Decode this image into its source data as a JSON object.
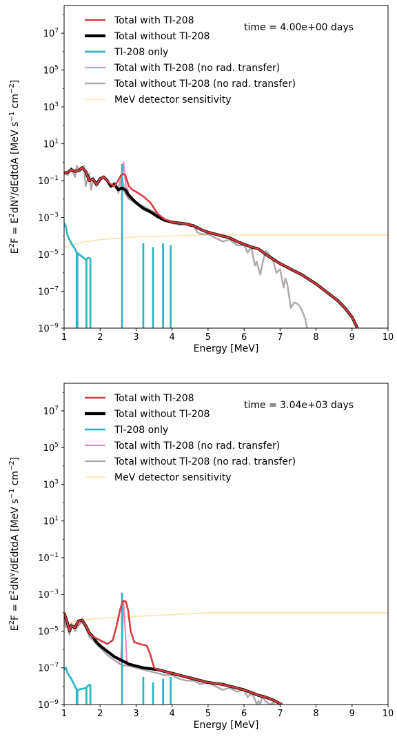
{
  "figure": {
    "background": "#ffffff"
  },
  "chart_data": [
    {
      "type": "line",
      "annotation": "time = 4.00e+00 days",
      "xlabel": "Energy [MeV]",
      "ylabel_parts": [
        "E",
        "2",
        "F = E",
        "2",
        "dN",
        "γ",
        "/dEdtdA [MeV s",
        "−1",
        " cm",
        "−2",
        "]"
      ],
      "xlim": [
        1,
        10
      ],
      "ylim_log10": [
        -9,
        8.5
      ],
      "yscale": "log",
      "xticks": [
        1,
        2,
        3,
        4,
        5,
        6,
        7,
        8,
        9,
        10
      ],
      "xtick_labels": [
        "1",
        "2",
        "3",
        "4",
        "5",
        "6",
        "7",
        "8",
        "9",
        "10"
      ],
      "yticks_log10": [
        -9,
        -7,
        -5,
        -3,
        -1,
        1,
        3,
        5,
        7
      ],
      "ytick_labels": [
        [
          "10",
          "−9"
        ],
        [
          "10",
          "−7"
        ],
        [
          "10",
          "−5"
        ],
        [
          "10",
          "−3"
        ],
        [
          "10",
          "−1"
        ],
        [
          "10",
          "1"
        ],
        [
          "10",
          "3"
        ],
        [
          "10",
          "5"
        ],
        [
          "10",
          "7"
        ]
      ],
      "legend_position": "top-left",
      "series": [
        {
          "name": "MeV detector sensitivity",
          "color": "#fde3a7",
          "width": 1.6,
          "x": [
            1.0,
            1.5,
            2.0,
            3.0,
            4.0,
            5.0,
            6.0,
            7.0,
            8.0,
            9.0,
            10.0
          ],
          "y_log10": [
            -4.6,
            -4.35,
            -4.2,
            -4.05,
            -4.0,
            -3.95,
            -3.95,
            -3.95,
            -3.95,
            -3.95,
            -3.95
          ]
        },
        {
          "name": "Total without Tl-208 (no rad. transfer)",
          "color": "#b0a9ab",
          "width": 2.5,
          "x": [
            1.0,
            1.1,
            1.2,
            1.3,
            1.35,
            1.45,
            1.55,
            1.6,
            1.7,
            1.75,
            1.8,
            1.9,
            2.0,
            2.1,
            2.2,
            2.3,
            2.4,
            2.5,
            2.6,
            2.7,
            2.8,
            3.0,
            3.2,
            3.5,
            3.8,
            4.0,
            4.2,
            4.4,
            4.5,
            4.6,
            4.7,
            4.8,
            5.0,
            5.2,
            5.4,
            5.6,
            5.8,
            6.0,
            6.1,
            6.2,
            6.3,
            6.35,
            6.45,
            6.5,
            6.6,
            6.7,
            6.8,
            6.9,
            7.0,
            7.1,
            7.15,
            7.2,
            7.3,
            7.4,
            7.5,
            7.6,
            7.7,
            7.75
          ],
          "y_log10": [
            -0.5,
            -0.7,
            -0.3,
            -0.8,
            -0.2,
            -0.5,
            -0.2,
            -1.3,
            -0.6,
            -1.5,
            -1.0,
            -1.3,
            -1.0,
            -0.8,
            -1.0,
            -1.3,
            -1.1,
            -1.4,
            -0.8,
            -1.7,
            -2.0,
            -2.2,
            -2.4,
            -2.7,
            -3.1,
            -3.3,
            -3.4,
            -3.3,
            -3.5,
            -3.4,
            -3.8,
            -3.9,
            -3.9,
            -4.1,
            -4.3,
            -4.2,
            -4.5,
            -4.5,
            -4.9,
            -4.6,
            -5.6,
            -5.4,
            -6.1,
            -5.6,
            -4.8,
            -5.0,
            -5.3,
            -6.0,
            -5.8,
            -6.8,
            -6.3,
            -6.6,
            -7.9,
            -7.6,
            -7.7,
            -8.0,
            -8.5,
            -9.0
          ]
        },
        {
          "name": "Total with Tl-208 (no rad. transfer)",
          "color": "#f384c6",
          "width": 2.2,
          "x": [
            2.5,
            2.58,
            2.62,
            2.65,
            2.68,
            2.72,
            2.8
          ],
          "y_log10": [
            -1.7,
            -1.3,
            -0.6,
            0.0,
            -0.6,
            -1.3,
            -1.6
          ]
        },
        {
          "name": "Tl-208 only",
          "color": "#2eb6c6",
          "width": 2.8,
          "stems": true,
          "x": [
            1.0,
            1.05,
            1.1,
            1.2,
            1.3,
            1.35,
            1.62,
            1.65,
            1.73
          ],
          "y_log10": [
            -3.3,
            -3.5,
            -4.0,
            -4.4,
            -4.7,
            -4.9,
            -5.3,
            -5.2,
            -5.2
          ],
          "lines": [
            [
              1.37,
              -4.9
            ],
            [
              2.61,
              -0.1
            ],
            [
              3.2,
              -4.4
            ],
            [
              3.47,
              -4.6
            ],
            [
              3.75,
              -4.4
            ],
            [
              3.96,
              -4.5
            ]
          ]
        },
        {
          "name": "Total without Tl-208",
          "color": "#000000",
          "width": 4.2,
          "x": [
            1.0,
            1.1,
            1.2,
            1.3,
            1.4,
            1.5,
            1.6,
            1.7,
            1.8,
            1.9,
            2.0,
            2.1,
            2.2,
            2.3,
            2.4,
            2.5,
            2.6,
            2.7,
            2.8,
            3.0,
            3.2,
            3.4,
            3.6,
            3.8,
            4.0,
            4.2,
            4.4,
            4.6,
            4.8,
            5.0,
            5.2,
            5.4,
            5.6,
            5.8,
            6.0,
            6.2,
            6.4,
            6.6,
            6.8,
            7.0,
            7.2,
            7.4,
            7.6,
            7.8,
            8.0,
            8.2,
            8.4,
            8.6,
            8.8,
            9.0,
            9.1,
            9.15
          ],
          "y_log10": [
            -0.6,
            -0.55,
            -0.4,
            -0.5,
            -0.45,
            -0.3,
            -0.5,
            -1.0,
            -0.9,
            -1.2,
            -0.9,
            -0.8,
            -1.0,
            -1.3,
            -1.2,
            -1.5,
            -1.4,
            -1.5,
            -1.8,
            -2.2,
            -2.5,
            -2.7,
            -2.95,
            -3.15,
            -3.25,
            -3.3,
            -3.35,
            -3.45,
            -3.65,
            -3.8,
            -3.9,
            -4.0,
            -4.1,
            -4.3,
            -4.45,
            -4.6,
            -4.7,
            -5.0,
            -5.25,
            -5.5,
            -5.7,
            -5.9,
            -6.1,
            -6.35,
            -6.6,
            -6.9,
            -7.2,
            -7.5,
            -7.9,
            -8.4,
            -8.8,
            -9.0
          ]
        },
        {
          "name": "Total with Tl-208",
          "color": "#d63a3d",
          "width": 2.6,
          "x": [
            1.0,
            1.1,
            1.2,
            1.3,
            1.4,
            1.5,
            1.6,
            1.7,
            1.8,
            1.9,
            2.0,
            2.1,
            2.2,
            2.3,
            2.4,
            2.5,
            2.6,
            2.65,
            2.7,
            2.8,
            2.9,
            3.0,
            3.2,
            3.4,
            3.6,
            3.8,
            4.0,
            4.2,
            4.4,
            4.6,
            4.8,
            5.0,
            5.2,
            5.4,
            5.6,
            5.8,
            6.0,
            6.2,
            6.4,
            6.6,
            6.8,
            7.0,
            7.2,
            7.4,
            7.6,
            7.8,
            8.0,
            8.2,
            8.4,
            8.6,
            8.8,
            9.0,
            9.1,
            9.15
          ],
          "y_log10": [
            -0.6,
            -0.55,
            -0.4,
            -0.5,
            -0.45,
            -0.3,
            -0.5,
            -1.0,
            -0.9,
            -1.2,
            -0.9,
            -0.8,
            -1.0,
            -1.2,
            -1.3,
            -1.0,
            -0.65,
            -0.65,
            -0.7,
            -1.3,
            -1.5,
            -1.6,
            -1.85,
            -2.2,
            -2.8,
            -3.1,
            -3.25,
            -3.3,
            -3.35,
            -3.45,
            -3.65,
            -3.8,
            -3.9,
            -4.0,
            -4.1,
            -4.3,
            -4.45,
            -4.6,
            -4.7,
            -5.0,
            -5.25,
            -5.5,
            -5.7,
            -5.9,
            -6.1,
            -6.35,
            -6.6,
            -6.9,
            -7.2,
            -7.5,
            -7.9,
            -8.4,
            -8.8,
            -9.0
          ]
        }
      ]
    },
    {
      "type": "line",
      "annotation": "time = 3.04e+03 days",
      "xlabel": "Energy [MeV]",
      "ylabel_parts": [
        "E",
        "2",
        "F = E",
        "2",
        "dN",
        "γ",
        "/dEdtdA [MeV s",
        "−1",
        " cm",
        "−2",
        "]"
      ],
      "xlim": [
        1,
        10
      ],
      "ylim_log10": [
        -9,
        8.5
      ],
      "yscale": "log",
      "xticks": [
        1,
        2,
        3,
        4,
        5,
        6,
        7,
        8,
        9,
        10
      ],
      "xtick_labels": [
        "1",
        "2",
        "3",
        "4",
        "5",
        "6",
        "7",
        "8",
        "9",
        "10"
      ],
      "yticks_log10": [
        -9,
        -7,
        -5,
        -3,
        -1,
        1,
        3,
        5,
        7
      ],
      "ytick_labels": [
        [
          "10",
          "−9"
        ],
        [
          "10",
          "−7"
        ],
        [
          "10",
          "−5"
        ],
        [
          "10",
          "−3"
        ],
        [
          "10",
          "−1"
        ],
        [
          "10",
          "1"
        ],
        [
          "10",
          "3"
        ],
        [
          "10",
          "5"
        ],
        [
          "10",
          "7"
        ]
      ],
      "legend_position": "top-left",
      "series": [
        {
          "name": "MeV detector sensitivity",
          "color": "#fde3a7",
          "width": 1.6,
          "x": [
            1.0,
            1.5,
            2.0,
            3.0,
            4.0,
            5.0,
            6.0,
            7.0,
            8.0,
            9.0,
            10.0
          ],
          "y_log10": [
            -4.6,
            -4.4,
            -4.3,
            -4.2,
            -4.1,
            -4.0,
            -4.0,
            -4.0,
            -4.0,
            -4.0,
            -4.0
          ]
        },
        {
          "name": "Total without Tl-208 (no rad. transfer)",
          "color": "#b0a9ab",
          "width": 2.5,
          "x": [
            1.0,
            1.05,
            1.1,
            1.15,
            1.2,
            1.3,
            1.4,
            1.5,
            1.6,
            1.7,
            1.8,
            2.0,
            2.2,
            2.4,
            2.6,
            2.8,
            3.0,
            3.2,
            3.4,
            3.6,
            3.8,
            4.0,
            4.2,
            4.4,
            4.6,
            4.8,
            5.0,
            5.2,
            5.4,
            5.6,
            5.8,
            6.0,
            6.1,
            6.2,
            6.3,
            6.35,
            6.4,
            6.45,
            6.5,
            6.6,
            6.7,
            6.8,
            6.85
          ],
          "y_log10": [
            -4.3,
            -4.8,
            -4.5,
            -5.2,
            -4.6,
            -5.0,
            -4.7,
            -4.5,
            -4.8,
            -5.3,
            -5.5,
            -5.9,
            -6.3,
            -6.6,
            -6.85,
            -6.9,
            -7.0,
            -7.1,
            -7.2,
            -7.3,
            -7.4,
            -7.4,
            -7.6,
            -7.7,
            -7.7,
            -7.9,
            -7.8,
            -8.0,
            -8.2,
            -8.1,
            -8.3,
            -8.2,
            -8.6,
            -8.4,
            -8.7,
            -9.0,
            -8.8,
            -9.0,
            -8.6,
            -8.8,
            -9.0,
            -8.9,
            -9.0
          ]
        },
        {
          "name": "Total with Tl-208 (no rad. transfer)",
          "color": "#f384c6",
          "width": 2.2,
          "x": [
            2.5,
            2.58,
            2.62,
            2.65,
            2.7,
            2.74,
            2.8
          ],
          "y_log10": [
            -6.8,
            -6.5,
            -5.0,
            -3.4,
            -5.0,
            -6.6,
            -6.9
          ]
        },
        {
          "name": "Tl-208 only",
          "color": "#2eb6c6",
          "width": 2.8,
          "stems": true,
          "x": [
            1.0,
            1.05,
            1.1,
            1.2,
            1.3,
            1.35,
            1.62,
            1.65,
            1.73
          ],
          "y_log10": [
            -7.1,
            -7.0,
            -7.3,
            -7.6,
            -8.0,
            -8.2,
            -8.1,
            -8.0,
            -7.9
          ],
          "lines": [
            [
              1.37,
              -8.2
            ],
            [
              2.61,
              -2.9
            ],
            [
              3.2,
              -7.5
            ],
            [
              3.47,
              -7.8
            ],
            [
              3.75,
              -7.6
            ],
            [
              3.96,
              -7.5
            ]
          ]
        },
        {
          "name": "Total without Tl-208",
          "color": "#000000",
          "width": 4.2,
          "x": [
            1.0,
            1.05,
            1.1,
            1.15,
            1.2,
            1.3,
            1.4,
            1.5,
            1.6,
            1.7,
            1.8,
            1.9,
            2.0,
            2.2,
            2.4,
            2.6,
            2.8,
            3.0,
            3.2,
            3.4,
            3.6,
            3.8,
            4.0,
            4.2,
            4.4,
            4.6,
            4.8,
            5.0,
            5.2,
            5.4,
            5.6,
            5.8,
            6.0,
            6.2,
            6.4,
            6.6,
            6.8,
            7.0,
            7.05
          ],
          "y_log10": [
            -4.0,
            -4.3,
            -4.6,
            -5.0,
            -4.7,
            -4.8,
            -4.45,
            -4.4,
            -4.7,
            -5.1,
            -5.3,
            -5.6,
            -5.8,
            -6.1,
            -6.4,
            -6.6,
            -6.8,
            -6.9,
            -7.0,
            -7.05,
            -7.1,
            -7.2,
            -7.3,
            -7.4,
            -7.5,
            -7.6,
            -7.7,
            -7.8,
            -7.85,
            -7.9,
            -8.0,
            -8.1,
            -8.2,
            -8.35,
            -8.5,
            -8.6,
            -8.75,
            -8.95,
            -9.0
          ]
        },
        {
          "name": "Total with Tl-208",
          "color": "#d63a3d",
          "width": 2.6,
          "x": [
            1.0,
            1.05,
            1.1,
            1.15,
            1.2,
            1.3,
            1.4,
            1.5,
            1.6,
            1.7,
            1.8,
            1.9,
            2.0,
            2.2,
            2.35,
            2.45,
            2.55,
            2.62,
            2.65,
            2.72,
            2.78,
            2.85,
            2.95,
            3.1,
            3.3,
            3.4,
            3.5,
            3.6,
            3.8,
            4.0,
            4.2,
            4.4,
            4.6,
            4.8,
            5.0,
            5.2,
            5.4,
            5.6,
            5.8,
            6.0,
            6.2,
            6.4,
            6.6,
            6.8,
            7.0,
            7.05
          ],
          "y_log10": [
            -4.0,
            -4.3,
            -4.6,
            -5.0,
            -4.7,
            -4.8,
            -4.45,
            -4.4,
            -4.7,
            -5.1,
            -5.3,
            -5.4,
            -5.5,
            -5.7,
            -5.5,
            -4.8,
            -3.9,
            -3.4,
            -3.35,
            -3.4,
            -3.9,
            -5.0,
            -5.6,
            -5.7,
            -5.8,
            -6.3,
            -7.0,
            -7.1,
            -7.2,
            -7.3,
            -7.4,
            -7.5,
            -7.6,
            -7.7,
            -7.8,
            -7.85,
            -7.9,
            -8.0,
            -8.1,
            -8.2,
            -8.35,
            -8.5,
            -8.6,
            -8.75,
            -8.95,
            -9.0
          ]
        }
      ]
    }
  ]
}
